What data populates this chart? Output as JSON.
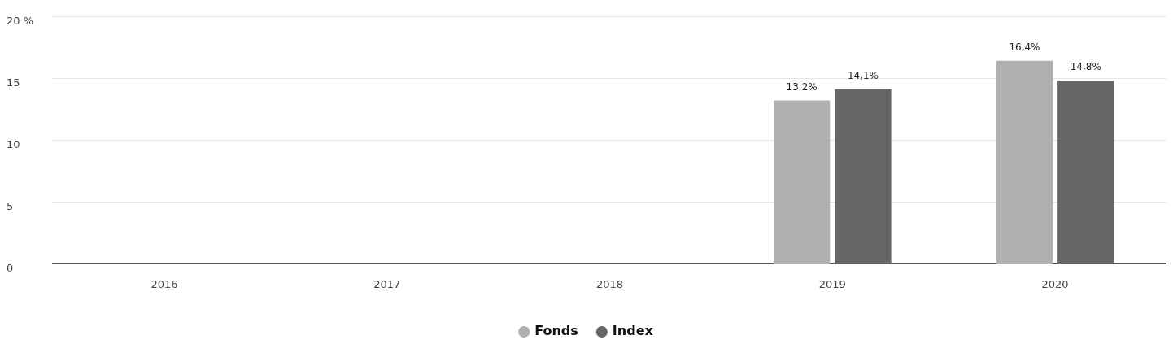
{
  "chart_data": {
    "type": "bar",
    "categories": [
      "2016",
      "2017",
      "2018",
      "2019",
      "2020"
    ],
    "series": [
      {
        "name": "Fonds",
        "color": "#b0b0b0",
        "values": [
          null,
          null,
          null,
          13.2,
          16.4
        ],
        "value_labels": [
          null,
          null,
          null,
          "13,2%",
          "16,4%"
        ]
      },
      {
        "name": "Index",
        "color": "#666666",
        "values": [
          null,
          null,
          null,
          14.1,
          14.8
        ],
        "value_labels": [
          null,
          null,
          null,
          "14,1%",
          "14,8%"
        ]
      }
    ],
    "ylim": [
      0,
      20
    ],
    "yticks": [
      0,
      5,
      10,
      15,
      {
        "value": 20,
        "label": "20 %"
      }
    ],
    "grid": "y",
    "legend": "bottom",
    "marker": "circle"
  }
}
